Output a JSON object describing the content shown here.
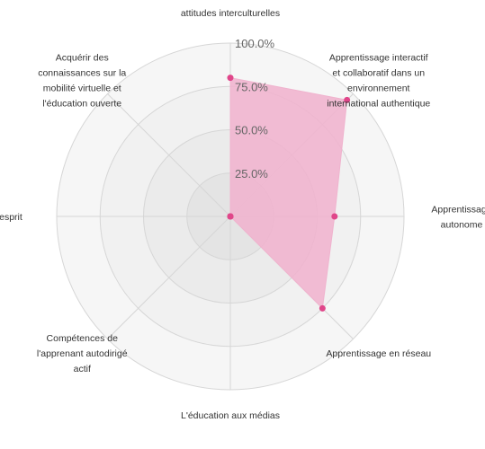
{
  "chart_data": {
    "type": "radar",
    "categories": [
      [
        "attitudes interculturelles"
      ],
      [
        "Apprentissage interactif",
        "et collaboratif dans un",
        "environnement",
        "international authentique"
      ],
      [
        "Apprentissage",
        "autonome"
      ],
      [
        "Apprentissage en réseau"
      ],
      [
        "L'éducation aux médias"
      ],
      [
        "Compétences de",
        "l'apprenant autodirigé",
        "actif"
      ],
      [
        "ure d'esprit"
      ],
      [
        "Acquérir des",
        "connaissances sur la",
        "mobilité virtuelle et",
        "l'éducation ouverte"
      ]
    ],
    "series": [
      {
        "values": [
          80,
          95,
          60,
          75,
          0,
          0,
          0,
          0
        ],
        "color": "#e0468a",
        "fill": "#f0b3ce"
      }
    ],
    "r_ticks": [
      "25.0%",
      "50.0%",
      "75.0%",
      "100.0%"
    ],
    "r_range": [
      0,
      100
    ],
    "grid": true,
    "ring_colors": [
      "#e4e4e4",
      "#ebebeb",
      "#f1f1f1",
      "#f6f6f6"
    ],
    "grid_line_color": "#d6d6d6"
  }
}
